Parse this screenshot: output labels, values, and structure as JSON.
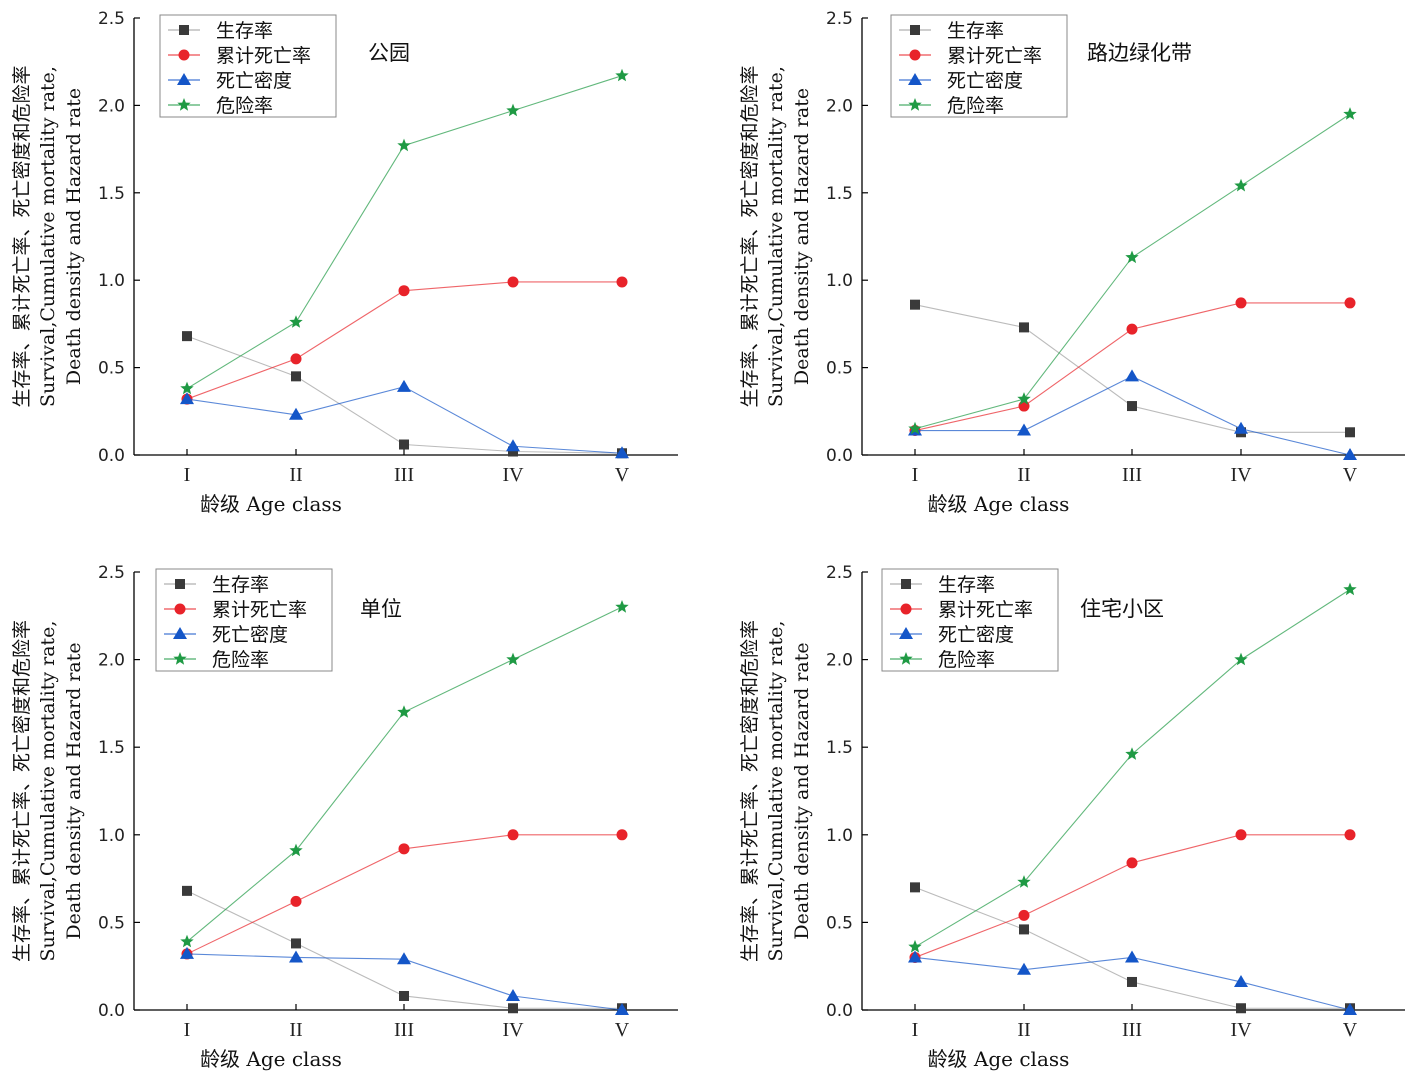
{
  "axis": {
    "xlabel": "龄级  Age class",
    "ylabel_lines": [
      "生存率、累计死亡率、死亡密度和危险率",
      "Survival,Cumulative mortality rate,",
      "Death density and Hazard rate"
    ],
    "ylim": [
      0,
      2.5
    ],
    "yticks": [
      "0.0",
      "0.5",
      "1.0",
      "1.5",
      "2.0",
      "2.5"
    ],
    "categories": [
      "I",
      "II",
      "III",
      "IV",
      "V"
    ]
  },
  "legend": [
    "生存率",
    "累计死亡率",
    "死亡密度",
    "危险率"
  ],
  "colors": {
    "survival_marker": "#3a3a3a",
    "survival_line": "#9e9e9e",
    "cumulative": "#e8232a",
    "density": "#1456c8",
    "hazard": "#1f9a44"
  },
  "chart_data": [
    {
      "type": "line",
      "site": "公园",
      "legend_placement": "top-left",
      "categories": [
        "I",
        "II",
        "III",
        "IV",
        "V"
      ],
      "series": [
        {
          "name": "生存率",
          "values": [
            0.68,
            0.45,
            0.06,
            0.02,
            0.01
          ]
        },
        {
          "name": "累计死亡率",
          "values": [
            0.32,
            0.55,
            0.94,
            0.99,
            0.99
          ]
        },
        {
          "name": "死亡密度",
          "values": [
            0.32,
            0.23,
            0.39,
            0.05,
            0.01
          ]
        },
        {
          "name": "危险率",
          "values": [
            0.38,
            0.76,
            1.77,
            1.97,
            2.17
          ]
        }
      ]
    },
    {
      "type": "line",
      "site": "路边绿化带",
      "legend_placement": "top-left",
      "categories": [
        "I",
        "II",
        "III",
        "IV",
        "V"
      ],
      "series": [
        {
          "name": "生存率",
          "values": [
            0.86,
            0.73,
            0.28,
            0.13,
            0.13
          ]
        },
        {
          "name": "累计死亡率",
          "values": [
            0.14,
            0.28,
            0.72,
            0.87,
            0.87
          ]
        },
        {
          "name": "死亡密度",
          "values": [
            0.14,
            0.14,
            0.45,
            0.15,
            0.0
          ]
        },
        {
          "name": "危险率",
          "values": [
            0.15,
            0.32,
            1.13,
            1.54,
            1.95
          ]
        }
      ]
    },
    {
      "type": "line",
      "site": "单位",
      "legend_placement": "top-left",
      "categories": [
        "I",
        "II",
        "III",
        "IV",
        "V"
      ],
      "series": [
        {
          "name": "生存率",
          "values": [
            0.68,
            0.38,
            0.08,
            0.01,
            0.01
          ]
        },
        {
          "name": "累计死亡率",
          "values": [
            0.32,
            0.62,
            0.92,
            1.0,
            1.0
          ]
        },
        {
          "name": "死亡密度",
          "values": [
            0.32,
            0.3,
            0.29,
            0.08,
            0.0
          ]
        },
        {
          "name": "危险率",
          "values": [
            0.39,
            0.91,
            1.7,
            2.0,
            2.3
          ]
        }
      ]
    },
    {
      "type": "line",
      "site": "住宅小区",
      "legend_placement": "top-left",
      "categories": [
        "I",
        "II",
        "III",
        "IV",
        "V"
      ],
      "series": [
        {
          "name": "生存率",
          "values": [
            0.7,
            0.46,
            0.16,
            0.01,
            0.01
          ]
        },
        {
          "name": "累计死亡率",
          "values": [
            0.3,
            0.54,
            0.84,
            1.0,
            1.0
          ]
        },
        {
          "name": "死亡密度",
          "values": [
            0.3,
            0.23,
            0.3,
            0.16,
            0.0
          ]
        },
        {
          "name": "危险率",
          "values": [
            0.36,
            0.73,
            1.46,
            2.0,
            2.4
          ]
        }
      ]
    }
  ]
}
